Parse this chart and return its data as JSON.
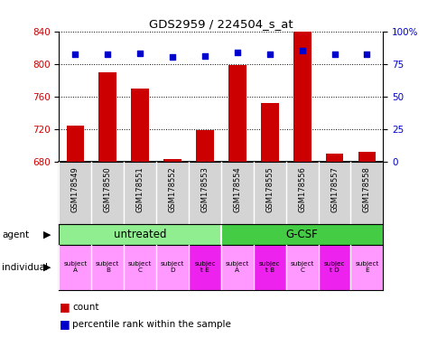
{
  "title": "GDS2959 / 224504_s_at",
  "samples": [
    "GSM178549",
    "GSM178550",
    "GSM178551",
    "GSM178552",
    "GSM178553",
    "GSM178554",
    "GSM178555",
    "GSM178556",
    "GSM178557",
    "GSM178558"
  ],
  "counts": [
    724,
    790,
    769,
    683,
    718,
    798,
    752,
    840,
    690,
    692
  ],
  "percentile_ranks": [
    82,
    82,
    83,
    80,
    81,
    84,
    82,
    85,
    82,
    82
  ],
  "ylim_left": [
    680,
    840
  ],
  "ylim_right": [
    0,
    100
  ],
  "yticks_left": [
    680,
    720,
    760,
    800,
    840
  ],
  "yticks_right": [
    0,
    25,
    50,
    75,
    100
  ],
  "bar_color": "#cc0000",
  "dot_color": "#0000cc",
  "agent_untreated_color": "#90ee90",
  "agent_gcsf_color": "#44cc44",
  "individual_labels": [
    "subject\nA",
    "subject\nB",
    "subject\nC",
    "subject\nD",
    "subjec\nt E",
    "subject\nA",
    "subjec\nt B",
    "subject\nC",
    "subjec\nt D",
    "subject\nE"
  ],
  "individual_highlight": [
    4,
    6,
    8
  ],
  "individual_color_normal": "#ff99ff",
  "individual_color_highlight": "#ee22ee",
  "sample_bg_color": "#d4d4d4",
  "background_color": "#ffffff",
  "bar_width": 0.55,
  "xlabel_color": "#cc0000",
  "ylabel_right_color": "#0000cc",
  "grid_linestyle": "dotted",
  "grid_linewidth": 0.7
}
